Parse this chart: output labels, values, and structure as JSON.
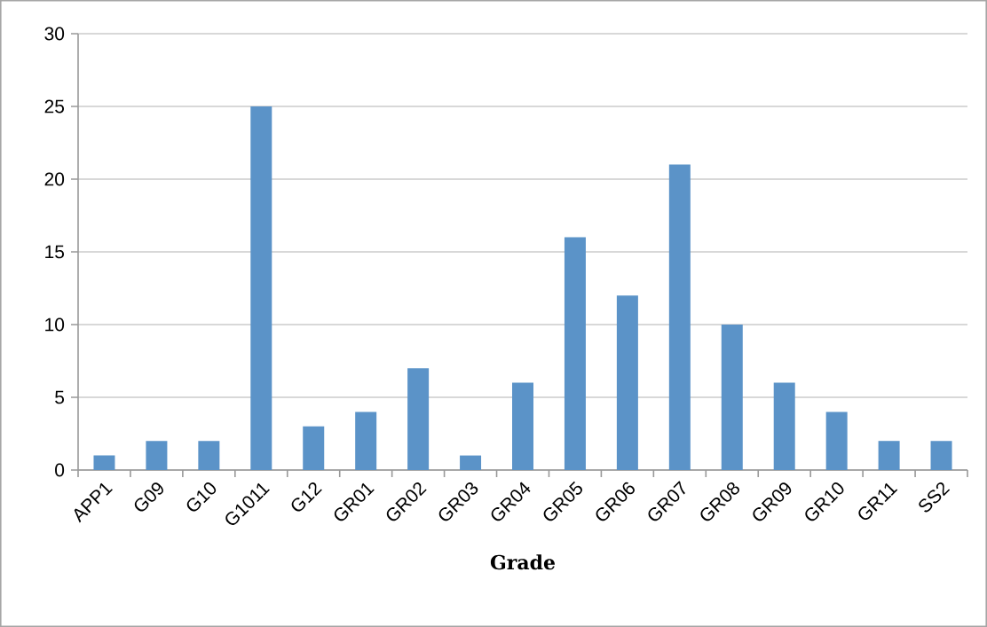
{
  "chart_data": {
    "type": "bar",
    "xlabel": "Grade",
    "categories": [
      "APP1",
      "G09",
      "G10",
      "G1011",
      "G12",
      "GR01",
      "GR02",
      "GR03",
      "GR04",
      "GR05",
      "GR06",
      "GR07",
      "GR08",
      "GR09",
      "GR10",
      "GR11",
      "SS2"
    ],
    "values": [
      1,
      2,
      2,
      25,
      3,
      4,
      7,
      1,
      6,
      16,
      12,
      21,
      10,
      6,
      4,
      2,
      2
    ],
    "color": "#5b93c8",
    "ylim": [
      0,
      30
    ],
    "yticks": [
      0,
      5,
      10,
      15,
      20,
      25,
      30
    ],
    "grid": "y"
  }
}
